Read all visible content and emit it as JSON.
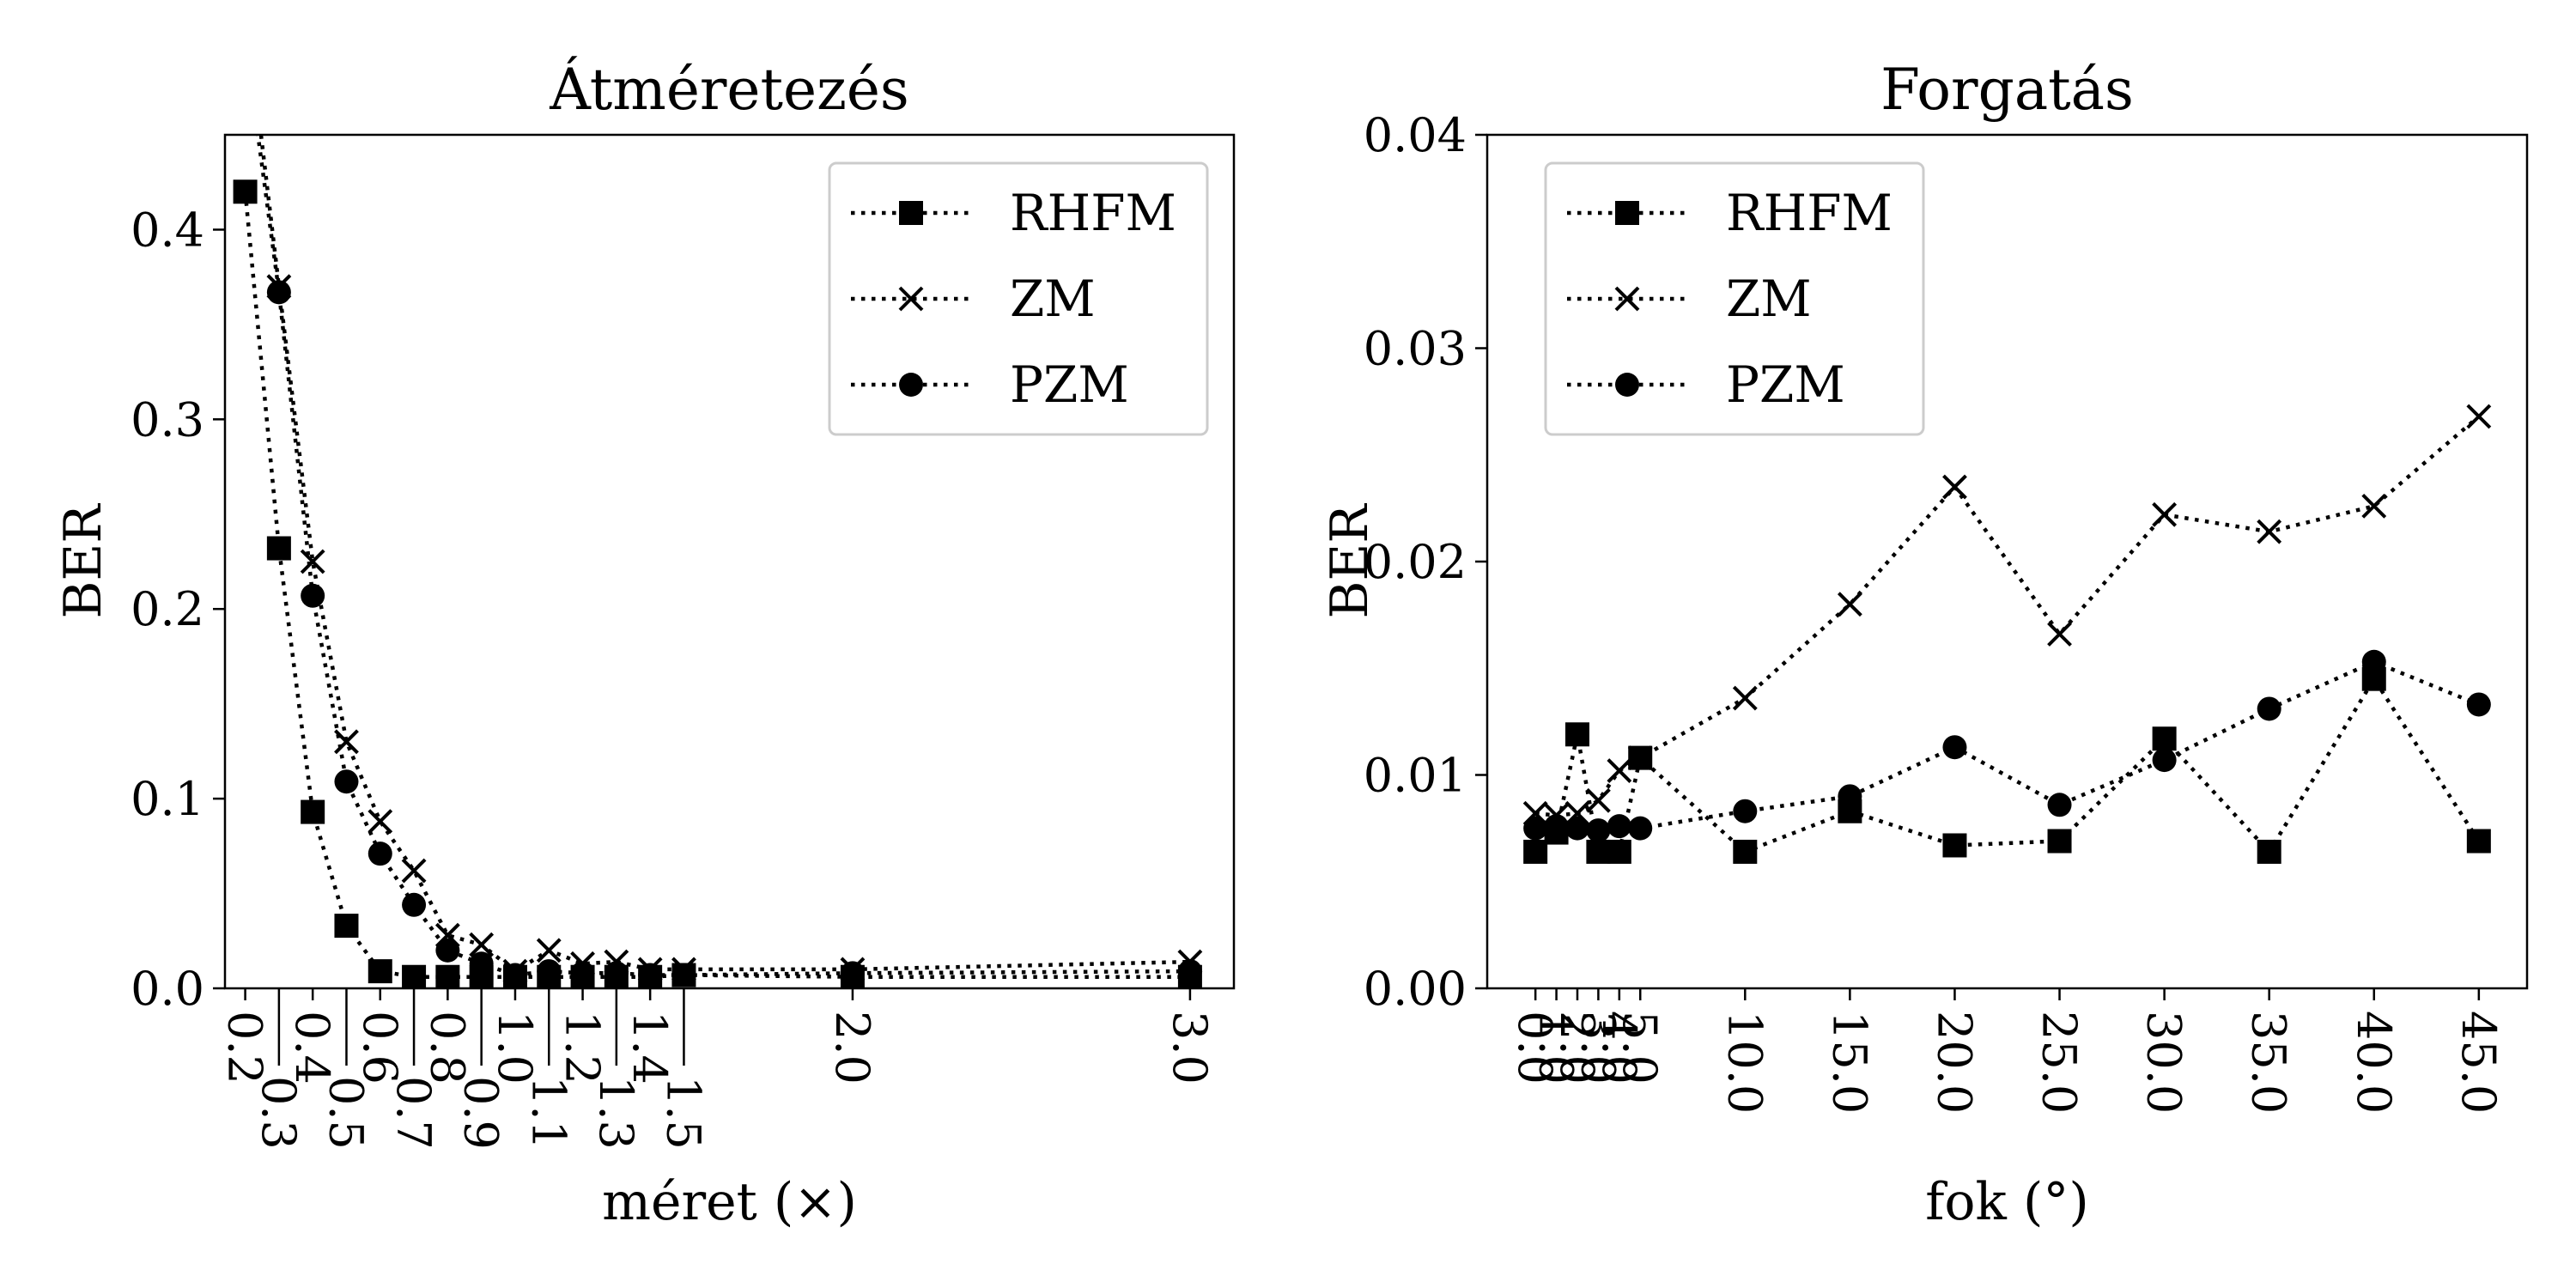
{
  "chart_data": [
    {
      "type": "line",
      "title": "Átméretezés",
      "xlabel": "méret (×)",
      "ylabel": "BER",
      "x": [
        0.2,
        0.3,
        0.4,
        0.5,
        0.6,
        0.7,
        0.8,
        0.9,
        1.0,
        1.1,
        1.2,
        1.3,
        1.4,
        1.5,
        2.0,
        3.0
      ],
      "x_tick_labels": [
        "0.2",
        "0.3",
        "0.4",
        "0.5",
        "0.6",
        "0.7",
        "0.8",
        "0.9",
        "1.0",
        "1.1",
        "1.2",
        "1.3",
        "1.4",
        "1.5",
        "2.0",
        "3.0"
      ],
      "x_tick_lower_row": [
        false,
        true,
        false,
        true,
        false,
        true,
        false,
        true,
        false,
        true,
        false,
        true,
        false,
        true,
        false,
        false
      ],
      "xlim": [
        0.14,
        3.13
      ],
      "ylim": [
        0,
        0.45
      ],
      "y_ticks": [
        0.0,
        0.1,
        0.2,
        0.3,
        0.4
      ],
      "y_tick_labels": [
        "0.0",
        "0.1",
        "0.2",
        "0.3",
        "0.4"
      ],
      "grid": false,
      "legend": "top-right",
      "series": [
        {
          "name": "RHFM",
          "marker": "square",
          "values": [
            0.42,
            0.232,
            0.093,
            0.033,
            0.009,
            0.006,
            0.006,
            0.006,
            0.006,
            0.006,
            0.006,
            0.006,
            0.006,
            0.007,
            0.006,
            0.006
          ]
        },
        {
          "name": "ZM",
          "marker": "x",
          "values": [
            0.52,
            0.37,
            0.225,
            0.13,
            0.088,
            0.062,
            0.028,
            0.023,
            0.009,
            0.02,
            0.013,
            0.014,
            0.01,
            0.01,
            0.01,
            0.014
          ]
        },
        {
          "name": "PZM",
          "marker": "circle",
          "values": [
            0.5,
            0.367,
            0.207,
            0.109,
            0.071,
            0.044,
            0.02,
            0.013,
            0.007,
            0.009,
            0.008,
            0.008,
            0.007,
            0.007,
            0.008,
            0.009
          ]
        }
      ]
    },
    {
      "type": "line",
      "title": "Forgatás",
      "xlabel": "fok (°)",
      "ylabel": "BER",
      "x": [
        0,
        1,
        2,
        3,
        4,
        5,
        10,
        15,
        20,
        25,
        30,
        35,
        40,
        45
      ],
      "x_tick_labels": [
        "0.0",
        "1.0",
        "2.0",
        "3.0",
        "4.0",
        "5.0",
        "10.0",
        "15.0",
        "20.0",
        "25.0",
        "30.0",
        "35.0",
        "40.0",
        "45.0"
      ],
      "xlim": [
        -2.3,
        47.3
      ],
      "ylim": [
        0,
        0.04
      ],
      "y_ticks": [
        0.0,
        0.01,
        0.02,
        0.03,
        0.04
      ],
      "y_tick_labels": [
        "0.00",
        "0.01",
        "0.02",
        "0.03",
        "0.04"
      ],
      "grid": false,
      "legend": "top-left",
      "series": [
        {
          "name": "RHFM",
          "marker": "square",
          "values": [
            0.0064,
            0.0073,
            0.0119,
            0.0064,
            0.0064,
            0.0108,
            0.0064,
            0.0083,
            0.0067,
            0.0069,
            0.0117,
            0.0064,
            0.0145,
            0.0069
          ]
        },
        {
          "name": "ZM",
          "marker": "x",
          "values": [
            0.0082,
            0.0081,
            0.0082,
            0.0088,
            0.0102,
            0.0108,
            0.0136,
            0.018,
            0.0235,
            0.0166,
            0.0222,
            0.0214,
            0.0226,
            0.0268
          ]
        },
        {
          "name": "PZM",
          "marker": "circle",
          "values": [
            0.0075,
            0.0076,
            0.0075,
            0.0074,
            0.0076,
            0.0075,
            0.0083,
            0.009,
            0.0113,
            0.0086,
            0.0107,
            0.0131,
            0.0153,
            0.0133
          ]
        }
      ]
    }
  ]
}
